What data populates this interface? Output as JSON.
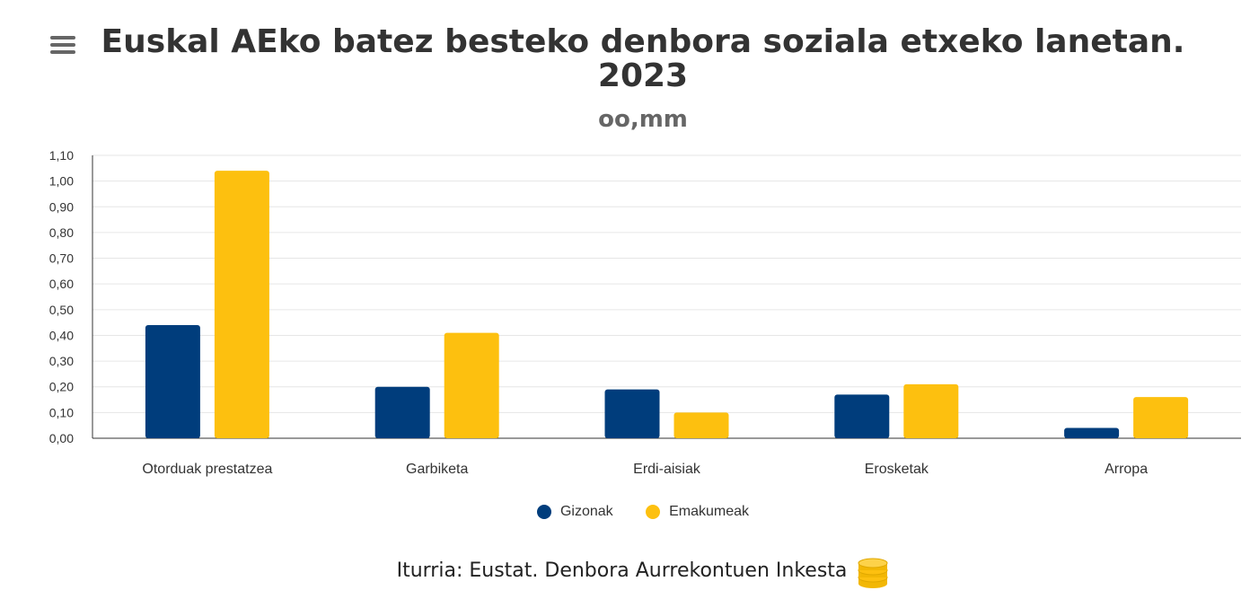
{
  "title": "Euskal AEko batez besteko denbora soziala etxeko lanetan. 2023",
  "subtitle": "oo,mm",
  "chart_data": {
    "type": "bar",
    "categories": [
      "Otorduak prestatzea",
      "Garbiketa",
      "Erdi-aisiak",
      "Erosketak",
      "Arropa"
    ],
    "series": [
      {
        "name": "Gizonak",
        "color": "#003d7c",
        "values": [
          0.44,
          0.2,
          0.19,
          0.17,
          0.04
        ]
      },
      {
        "name": "Emakumeak",
        "color": "#fdc00f",
        "values": [
          1.04,
          0.41,
          0.1,
          0.21,
          0.16
        ]
      }
    ],
    "ylim": [
      0,
      1.1
    ],
    "yticks": [
      "0,00",
      "0,10",
      "0,20",
      "0,30",
      "0,40",
      "0,50",
      "0,60",
      "0,70",
      "0,80",
      "0,90",
      "1,00",
      "1,10"
    ],
    "xlabel": "",
    "ylabel": ""
  },
  "legend": {
    "items": [
      {
        "label": "Gizonak",
        "color": "#003d7c"
      },
      {
        "label": "Emakumeak",
        "color": "#fdc00f"
      }
    ]
  },
  "source": "Iturria: Eustat. Denbora Aurrekontuen Inkesta"
}
